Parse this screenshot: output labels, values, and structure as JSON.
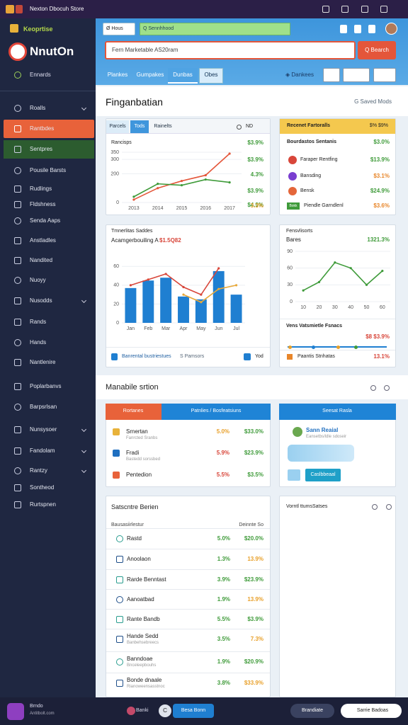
{
  "topbar": {
    "title": "Nexton Dbocuh Store"
  },
  "sidebar": {
    "brand_tag": "Keoprtise",
    "brand": "NnutOn",
    "home": "Ennards",
    "items": [
      "Roalls",
      "Rantbdes",
      "Sentpres",
      "Pousile Barsts",
      "Rudlings",
      "Fldshness",
      "Senda Aaps",
      "Anstladles",
      "Nandited",
      "Nuoyy",
      "Nusodds",
      "Rands",
      "Hands",
      "Nantlenire",
      "Poplarbanvs",
      "Barpsrlsan",
      "Nunsysoer",
      "Fandolam",
      "Rantzy",
      "Sontheod",
      "Rurtspnen"
    ]
  },
  "header": {
    "home_tab": "Ø Hous",
    "quick_search": "Q Sennhhood",
    "search_placeholder": "Fern Marketable AS20ram",
    "search_button": "Q Bearch",
    "tabs": [
      "Plankes",
      "Gumpakes",
      "Dunbas",
      "Obes"
    ],
    "link": "◈ Dankees"
  },
  "page": {
    "title": "Finganbatian",
    "action": "G Saved Mods"
  },
  "traffic": {
    "tabs": [
      "Parcels",
      "Tods",
      "Rainelts"
    ],
    "controls": "ND",
    "label": "Rancisps",
    "chart": {
      "type": "line",
      "categories": [
        "2013",
        "2014",
        "2015",
        "2016",
        "2017"
      ],
      "ylim": [
        0,
        350
      ],
      "yticks": [
        0,
        200,
        300,
        350
      ],
      "series": [
        {
          "color": "#e4563a",
          "values": [
            20,
            100,
            150,
            190,
            340
          ]
        },
        {
          "color": "#3f9b3a",
          "values": [
            40,
            130,
            120,
            160,
            140
          ]
        }
      ]
    },
    "stats": [
      "$3.9%",
      "$3.9%",
      "4.3%",
      "$3.9%",
      "$4.9%",
      "3.3%"
    ]
  },
  "recent": {
    "title": "Recenet Fartoralls",
    "header_value": "$% $9%",
    "rows": [
      {
        "name": "Bourdastos Sentanis",
        "value": "$3.0%"
      },
      {
        "name": "Faraper Rentfing",
        "value": "$13.9%"
      },
      {
        "name": "Bansding",
        "value": "$3.1%"
      },
      {
        "name": "Bensk",
        "value": "$24.9%"
      }
    ],
    "badge": "Bokk",
    "footer": "Piendle Garndlenl",
    "footer_value": "$3.6%"
  },
  "sales": {
    "subtitle": "Tmnerlitas Saddes",
    "title": "Acamgerbouiling A",
    "amount": "$1.5Q82",
    "chart": {
      "type": "bar",
      "categories": [
        "Jan",
        "Feb",
        "Mar",
        "Apr",
        "May",
        "Jun",
        "Jul"
      ],
      "ylim": [
        0,
        70
      ],
      "yticks": [
        0,
        20,
        40,
        60
      ],
      "series": [
        {
          "color": "#1f7fd1",
          "values": [
            37,
            45,
            48,
            28,
            25,
            55,
            30
          ]
        },
        {
          "type": "line",
          "color": "#d8463a",
          "values": [
            40,
            46,
            52,
            38,
            30,
            58,
            null
          ]
        },
        {
          "type": "line",
          "color": "#e8a93a",
          "values": [
            null,
            null,
            null,
            30,
            22,
            36,
            40
          ]
        }
      ]
    },
    "footer": "Banrental bustriestues",
    "footer_mid": "S Pamsors",
    "footer_right": "Yod"
  },
  "forecast": {
    "title": "Fensvlisorts",
    "label": "Bares",
    "value": "1321.3%",
    "chart": {
      "type": "line",
      "categories": [
        "10",
        "20",
        "30",
        "40",
        "50",
        "60"
      ],
      "ylim": [
        0,
        90
      ],
      "yticks": [
        0,
        30,
        60,
        90
      ],
      "series": [
        {
          "color": "#3f9b3a",
          "values": [
            20,
            35,
            70,
            60,
            30,
            55
          ]
        }
      ]
    },
    "sub_title": "Vens Vatsmietle Fsnacs",
    "sub_value": "$8 $3.9%",
    "footer": "Paantis Stnhatas",
    "footer_value": "13.1%"
  },
  "section": {
    "title": "Manabile srtion"
  },
  "products": {
    "tabs": [
      "Rortanes",
      "Patnlies / Bosfeatsiuns"
    ],
    "rows": [
      {
        "name": "Srnertan",
        "sub": "Fanrcted Sranbs",
        "pct": "5.0%",
        "value": "$33.0%"
      },
      {
        "name": "Fradi",
        "sub": "Bastedd sorssbed",
        "pct": "5.9%",
        "value": "$23.9%"
      },
      {
        "name": "Pentedion",
        "pct": "5.5%",
        "value": "$3.5%"
      }
    ]
  },
  "weather": {
    "title": "Seesat Rasla",
    "name": "Sann Reaial",
    "sub": "Eansetbs/ldle sdoseir",
    "button": "Caslbbeaal"
  },
  "summary": {
    "title": "Satscntre Berien",
    "col1": "Bausasiirlestur",
    "col2": "Deinnte So",
    "rows": [
      {
        "name": "Rastd",
        "pct": "5.0%",
        "value": "$20.0%"
      },
      {
        "name": "Anoolaon",
        "pct": "1.3%",
        "value": "13.9%"
      },
      {
        "name": "Rarde Benntast",
        "pct": "3.9%",
        "value": "$23.9%"
      },
      {
        "name": "Aanoatbad",
        "pct": "1.9%",
        "value": "13.9%"
      },
      {
        "name": "Rante Bandb",
        "pct": "5.5%",
        "value": "$3.9%"
      },
      {
        "name": "Hande Sedd",
        "sub": "Banbehsebreecs",
        "pct": "3.5%",
        "value": "7.3%"
      },
      {
        "name": "Banndoae",
        "sub": "Bnceleepbouhs",
        "pct": "1.9%",
        "value": "$20.9%"
      },
      {
        "name": "Bonde dnaale",
        "sub": "Rianoweensasstnoc",
        "pct": "3.8%",
        "value": "$33.9%"
      }
    ]
  },
  "activity": {
    "title": "Vorntl ttumsSatses"
  },
  "footer": {
    "user": "Brndo",
    "email": "Antitbolt.com",
    "chip1": "Banki",
    "chip2": "C",
    "button": "Besa Bonn",
    "button2": "Brandiate",
    "button3": "Sarrie Badoas"
  }
}
